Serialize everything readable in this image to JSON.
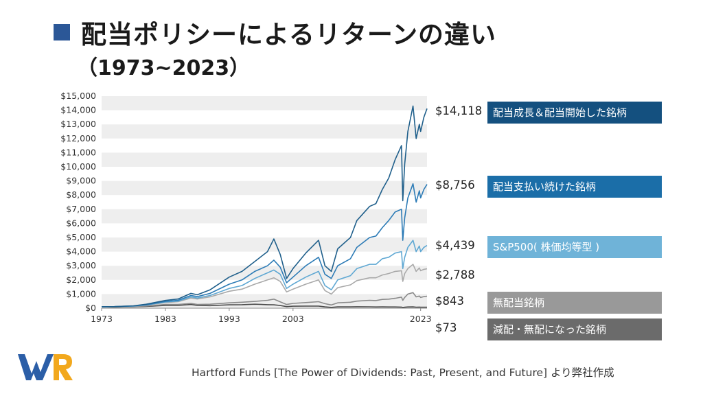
{
  "header": {
    "title": "配当ポリシーによるリターンの違い",
    "subtitle": "（1973~2023）",
    "accent_color": "#2b5797"
  },
  "chart_data": {
    "type": "line",
    "title": "配当ポリシーによるリターンの違い",
    "subtitle": "（1973~2023）",
    "xlabel": "",
    "ylabel": "",
    "x_range": [
      1973,
      2024
    ],
    "ylim": [
      0,
      15000
    ],
    "y_ticks": [
      "$15,000",
      "$14,000",
      "$13,000",
      "$12,000",
      "$11,000",
      "$10,000",
      "$9,000",
      "$8,000",
      "$7,000",
      "$6,000",
      "$5,000",
      "$4,000",
      "$3,000",
      "$2,000",
      "$1,000",
      "$0"
    ],
    "x_ticks": [
      "1973",
      "1983",
      "1993",
      "2003",
      "2023"
    ],
    "grid": "alternating horizontal bands",
    "legend": "right, labelled boxes with end values",
    "series": [
      {
        "name": "配当成長＆配当開始した銘柄",
        "end_label": "$14,118",
        "color": "#1f5f8b",
        "label_color": "#14507f",
        "points": [
          [
            1973,
            100
          ],
          [
            1975,
            110
          ],
          [
            1978,
            170
          ],
          [
            1980,
            280
          ],
          [
            1983,
            550
          ],
          [
            1985,
            650
          ],
          [
            1987,
            1050
          ],
          [
            1988,
            950
          ],
          [
            1990,
            1300
          ],
          [
            1993,
            2200
          ],
          [
            1995,
            2600
          ],
          [
            1997,
            3300
          ],
          [
            1999,
            4000
          ],
          [
            2000,
            4900
          ],
          [
            2001,
            3800
          ],
          [
            2002,
            2100
          ],
          [
            2003,
            2800
          ],
          [
            2005,
            3900
          ],
          [
            2007,
            4800
          ],
          [
            2008,
            3000
          ],
          [
            2009,
            2600
          ],
          [
            2010,
            4200
          ],
          [
            2012,
            5000
          ],
          [
            2013,
            6200
          ],
          [
            2015,
            7200
          ],
          [
            2016,
            7400
          ],
          [
            2017,
            8400
          ],
          [
            2018,
            9200
          ],
          [
            2019,
            10500
          ],
          [
            2020,
            11500
          ],
          [
            2020.2,
            7600
          ],
          [
            2020.5,
            10200
          ],
          [
            2021,
            12500
          ],
          [
            2021.8,
            14300
          ],
          [
            2022.3,
            12000
          ],
          [
            2022.8,
            13000
          ],
          [
            2023,
            12500
          ],
          [
            2023.5,
            13500
          ],
          [
            2024,
            14118
          ]
        ]
      },
      {
        "name": "配当支払い続けた銘柄",
        "end_label": "$8,756",
        "color": "#2c7bb6",
        "label_color": "#1b6ea8",
        "points": [
          [
            1973,
            100
          ],
          [
            1975,
            110
          ],
          [
            1978,
            160
          ],
          [
            1980,
            250
          ],
          [
            1983,
            480
          ],
          [
            1985,
            560
          ],
          [
            1987,
            900
          ],
          [
            1988,
            820
          ],
          [
            1990,
            1050
          ],
          [
            1993,
            1700
          ],
          [
            1995,
            2000
          ],
          [
            1997,
            2600
          ],
          [
            1999,
            3000
          ],
          [
            2000,
            3400
          ],
          [
            2001,
            2900
          ],
          [
            2002,
            1800
          ],
          [
            2003,
            2200
          ],
          [
            2005,
            3000
          ],
          [
            2007,
            3600
          ],
          [
            2008,
            2400
          ],
          [
            2009,
            2100
          ],
          [
            2010,
            3000
          ],
          [
            2012,
            3500
          ],
          [
            2013,
            4300
          ],
          [
            2015,
            5000
          ],
          [
            2016,
            5100
          ],
          [
            2017,
            5700
          ],
          [
            2018,
            6200
          ],
          [
            2019,
            6800
          ],
          [
            2020,
            7000
          ],
          [
            2020.2,
            4800
          ],
          [
            2020.5,
            6400
          ],
          [
            2021,
            7800
          ],
          [
            2021.8,
            8800
          ],
          [
            2022.3,
            7500
          ],
          [
            2022.8,
            8300
          ],
          [
            2023,
            7800
          ],
          [
            2023.5,
            8400
          ],
          [
            2024,
            8756
          ]
        ]
      },
      {
        "name": "S&P500( 株価均等型 )",
        "end_label": "$4,439",
        "color": "#5fa8d3",
        "label_color": "#6fb3d8",
        "points": [
          [
            1973,
            100
          ],
          [
            1975,
            105
          ],
          [
            1978,
            150
          ],
          [
            1980,
            230
          ],
          [
            1983,
            440
          ],
          [
            1985,
            500
          ],
          [
            1987,
            800
          ],
          [
            1988,
            720
          ],
          [
            1990,
            900
          ],
          [
            1993,
            1400
          ],
          [
            1995,
            1600
          ],
          [
            1997,
            2100
          ],
          [
            1999,
            2500
          ],
          [
            2000,
            2700
          ],
          [
            2001,
            2400
          ],
          [
            2002,
            1400
          ],
          [
            2003,
            1700
          ],
          [
            2005,
            2200
          ],
          [
            2007,
            2600
          ],
          [
            2008,
            1600
          ],
          [
            2009,
            1300
          ],
          [
            2010,
            2000
          ],
          [
            2012,
            2300
          ],
          [
            2013,
            2800
          ],
          [
            2015,
            3100
          ],
          [
            2016,
            3100
          ],
          [
            2017,
            3500
          ],
          [
            2018,
            3600
          ],
          [
            2019,
            3900
          ],
          [
            2020,
            4000
          ],
          [
            2020.2,
            2800
          ],
          [
            2020.5,
            3600
          ],
          [
            2021,
            4300
          ],
          [
            2021.8,
            4800
          ],
          [
            2022.3,
            4000
          ],
          [
            2022.8,
            4400
          ],
          [
            2023,
            4000
          ],
          [
            2023.5,
            4300
          ],
          [
            2024,
            4439
          ]
        ]
      },
      {
        "name": "",
        "end_label": "$2,788",
        "color": "#a9a9a9",
        "label_color": "",
        "points": [
          [
            1973,
            100
          ],
          [
            1975,
            100
          ],
          [
            1978,
            140
          ],
          [
            1980,
            210
          ],
          [
            1983,
            400
          ],
          [
            1985,
            460
          ],
          [
            1987,
            720
          ],
          [
            1988,
            650
          ],
          [
            1990,
            800
          ],
          [
            1993,
            1200
          ],
          [
            1995,
            1350
          ],
          [
            1997,
            1700
          ],
          [
            1999,
            2000
          ],
          [
            2000,
            2150
          ],
          [
            2001,
            1900
          ],
          [
            2002,
            1150
          ],
          [
            2003,
            1350
          ],
          [
            2005,
            1700
          ],
          [
            2007,
            2000
          ],
          [
            2008,
            1250
          ],
          [
            2009,
            1000
          ],
          [
            2010,
            1450
          ],
          [
            2012,
            1650
          ],
          [
            2013,
            1950
          ],
          [
            2015,
            2150
          ],
          [
            2016,
            2150
          ],
          [
            2017,
            2350
          ],
          [
            2018,
            2450
          ],
          [
            2019,
            2600
          ],
          [
            2020,
            2650
          ],
          [
            2020.2,
            1900
          ],
          [
            2020.5,
            2450
          ],
          [
            2021,
            2800
          ],
          [
            2021.8,
            3100
          ],
          [
            2022.3,
            2600
          ],
          [
            2022.8,
            2850
          ],
          [
            2023,
            2650
          ],
          [
            2023.5,
            2750
          ],
          [
            2024,
            2788
          ]
        ]
      },
      {
        "name": "無配当銘柄",
        "end_label": "$843",
        "color": "#8a8a8a",
        "label_color": "#999999",
        "points": [
          [
            1973,
            100
          ],
          [
            1975,
            80
          ],
          [
            1978,
            100
          ],
          [
            1980,
            150
          ],
          [
            1983,
            260
          ],
          [
            1985,
            260
          ],
          [
            1987,
            340
          ],
          [
            1988,
            260
          ],
          [
            1990,
            280
          ],
          [
            1993,
            380
          ],
          [
            1995,
            420
          ],
          [
            1997,
            480
          ],
          [
            1999,
            560
          ],
          [
            2000,
            640
          ],
          [
            2001,
            450
          ],
          [
            2002,
            260
          ],
          [
            2003,
            340
          ],
          [
            2005,
            400
          ],
          [
            2007,
            460
          ],
          [
            2008,
            320
          ],
          [
            2009,
            230
          ],
          [
            2010,
            380
          ],
          [
            2012,
            420
          ],
          [
            2013,
            500
          ],
          [
            2015,
            560
          ],
          [
            2016,
            540
          ],
          [
            2017,
            620
          ],
          [
            2018,
            640
          ],
          [
            2019,
            700
          ],
          [
            2020,
            780
          ],
          [
            2020.2,
            560
          ],
          [
            2020.5,
            760
          ],
          [
            2021,
            1000
          ],
          [
            2021.8,
            1100
          ],
          [
            2022.3,
            800
          ],
          [
            2022.8,
            860
          ],
          [
            2023,
            760
          ],
          [
            2023.5,
            820
          ],
          [
            2024,
            843
          ]
        ]
      },
      {
        "name": "減配・無配になった銘柄",
        "end_label": "$73",
        "color": "#4d4d4d",
        "label_color": "#6b6b6b",
        "points": [
          [
            1973,
            100
          ],
          [
            1975,
            70
          ],
          [
            1978,
            90
          ],
          [
            1980,
            120
          ],
          [
            1983,
            200
          ],
          [
            1985,
            200
          ],
          [
            1987,
            260
          ],
          [
            1988,
            200
          ],
          [
            1990,
            180
          ],
          [
            1993,
            240
          ],
          [
            1995,
            250
          ],
          [
            1997,
            280
          ],
          [
            1999,
            250
          ],
          [
            2000,
            240
          ],
          [
            2001,
            190
          ],
          [
            2002,
            110
          ],
          [
            2003,
            140
          ],
          [
            2005,
            150
          ],
          [
            2007,
            150
          ],
          [
            2008,
            90
          ],
          [
            2009,
            60
          ],
          [
            2010,
            90
          ],
          [
            2012,
            90
          ],
          [
            2013,
            100
          ],
          [
            2015,
            95
          ],
          [
            2016,
            85
          ],
          [
            2017,
            90
          ],
          [
            2018,
            85
          ],
          [
            2019,
            85
          ],
          [
            2020,
            80
          ],
          [
            2020.2,
            55
          ],
          [
            2020.5,
            70
          ],
          [
            2021,
            85
          ],
          [
            2021.8,
            90
          ],
          [
            2022.3,
            75
          ],
          [
            2022.8,
            78
          ],
          [
            2023,
            72
          ],
          [
            2023.5,
            74
          ],
          [
            2024,
            73
          ]
        ]
      }
    ]
  },
  "footer": {
    "logo_text": "WR",
    "logo_colors": [
      "#2b5ea7",
      "#f2a81d"
    ],
    "source": "Hartford Funds [The Power of Dividends: Past, Present, and Future] より弊社作成"
  }
}
